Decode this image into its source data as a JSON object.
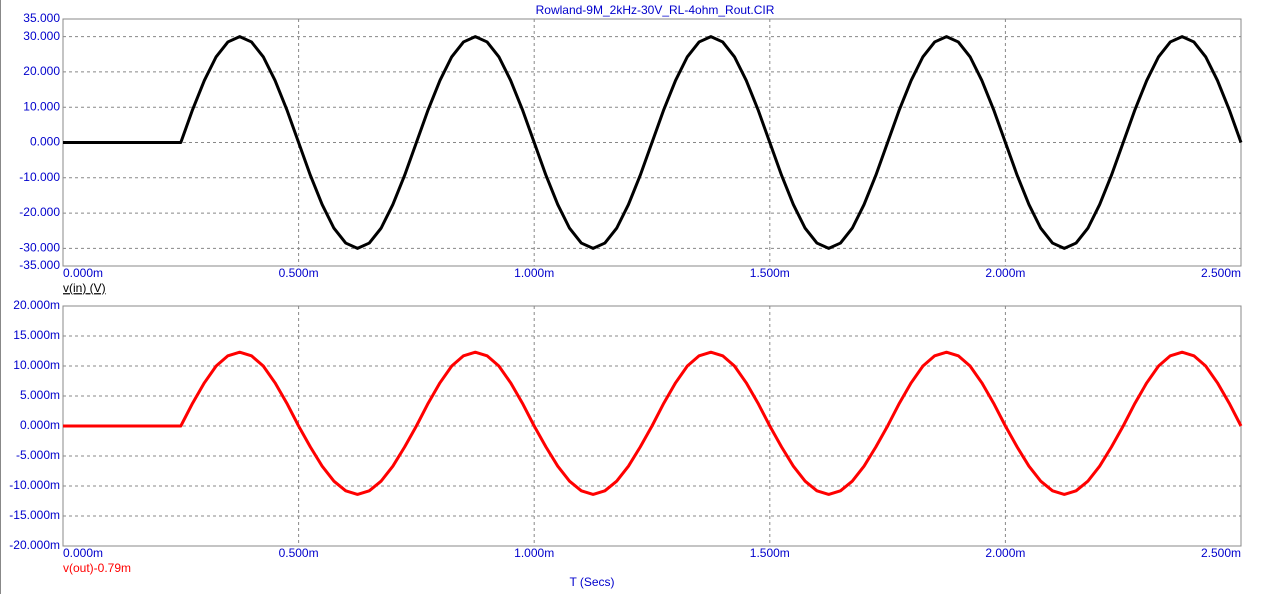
{
  "chart_data": [
    {
      "type": "line",
      "title": "Rowland-9M_2kHz-30V_RL-4ohm_Rout.CIR",
      "x": [
        0,
        0.00025,
        0.000275,
        0.0003,
        0.000325,
        0.00035,
        0.000375,
        0.0004,
        0.000425,
        0.00045,
        0.000475,
        0.0005,
        0.000525,
        0.00055,
        0.000575,
        0.0006,
        0.000625,
        0.00065,
        0.000675,
        0.0007,
        0.000725,
        0.00075,
        0.000775,
        0.0008,
        0.000825,
        0.00085,
        0.000875,
        0.0009,
        0.000925,
        0.00095,
        0.000975,
        0.001,
        0.001025,
        0.00105,
        0.001075,
        0.0011,
        0.001125,
        0.00115,
        0.001175,
        0.0012,
        0.001225,
        0.00125,
        0.001275,
        0.0013,
        0.001325,
        0.00135,
        0.001375,
        0.0014,
        0.001425,
        0.00145,
        0.001475,
        0.0015,
        0.001525,
        0.00155,
        0.001575,
        0.0016,
        0.001625,
        0.00165,
        0.001675,
        0.0017,
        0.001725,
        0.00175,
        0.001775,
        0.0018,
        0.001825,
        0.00185,
        0.001875,
        0.0019,
        0.001925,
        0.00195,
        0.001975,
        0.002,
        0.002025,
        0.00205,
        0.002075,
        0.0021,
        0.002125,
        0.00215,
        0.002175,
        0.0022,
        0.002225,
        0.00225,
        0.002275,
        0.0023,
        0.002325,
        0.00235,
        0.002375,
        0.0024,
        0.002425,
        0.00245,
        0.002475,
        0.0025
      ],
      "series": [
        {
          "name": "v(in) (V)",
          "color": "#000000",
          "values": [
            0,
            0,
            9.3,
            17.6,
            24.3,
            28.5,
            30,
            28.5,
            24.3,
            17.6,
            9.3,
            0,
            -9.3,
            -17.6,
            -24.3,
            -28.5,
            -30,
            -28.5,
            -24.3,
            -17.6,
            -9.3,
            0,
            9.3,
            17.6,
            24.3,
            28.5,
            30,
            28.5,
            24.3,
            17.6,
            9.3,
            0,
            -9.3,
            -17.6,
            -24.3,
            -28.5,
            -30,
            -28.5,
            -24.3,
            -17.6,
            -9.3,
            0,
            9.3,
            17.6,
            24.3,
            28.5,
            30,
            28.5,
            24.3,
            17.6,
            9.3,
            0,
            -9.3,
            -17.6,
            -24.3,
            -28.5,
            -30,
            -28.5,
            -24.3,
            -17.6,
            -9.3,
            0,
            9.3,
            17.6,
            24.3,
            28.5,
            30,
            28.5,
            24.3,
            17.6,
            9.3,
            0,
            -9.3,
            -17.6,
            -24.3,
            -28.5,
            -30,
            -28.5,
            -24.3,
            -17.6,
            -9.3,
            0,
            9.3,
            17.6,
            24.3,
            28.5,
            30,
            28.5,
            24.3,
            17.6,
            9.3,
            0
          ]
        }
      ],
      "xlim": [
        0,
        0.0025
      ],
      "xticks": [
        {
          "value": 0,
          "label": "0.000m"
        },
        {
          "value": 0.0005,
          "label": "0.500m"
        },
        {
          "value": 0.001,
          "label": "1.000m"
        },
        {
          "value": 0.0015,
          "label": "1.500m"
        },
        {
          "value": 0.002,
          "label": "2.000m"
        },
        {
          "value": 0.0025,
          "label": "2.500m"
        }
      ],
      "ylim": [
        -35,
        35
      ],
      "yticks": [
        {
          "value": 35,
          "label": "35.000"
        },
        {
          "value": 30,
          "label": "30.000"
        },
        {
          "value": 20,
          "label": "20.000"
        },
        {
          "value": 10,
          "label": "10.000"
        },
        {
          "value": 0,
          "label": "0.000"
        },
        {
          "value": -10,
          "label": "-10.000"
        },
        {
          "value": -20,
          "label": "-20.000"
        },
        {
          "value": -30,
          "label": "-30.000"
        },
        {
          "value": -35,
          "label": "-35.000"
        }
      ],
      "grid": true
    },
    {
      "type": "line",
      "xlabel": "T (Secs)",
      "x": [
        0,
        0.00025,
        0.000275,
        0.0003,
        0.000325,
        0.00035,
        0.000375,
        0.0004,
        0.000425,
        0.00045,
        0.000475,
        0.0005,
        0.000525,
        0.00055,
        0.000575,
        0.0006,
        0.000625,
        0.00065,
        0.000675,
        0.0007,
        0.000725,
        0.00075,
        0.000775,
        0.0008,
        0.000825,
        0.00085,
        0.000875,
        0.0009,
        0.000925,
        0.00095,
        0.000975,
        0.001,
        0.001025,
        0.00105,
        0.001075,
        0.0011,
        0.001125,
        0.00115,
        0.001175,
        0.0012,
        0.001225,
        0.00125,
        0.001275,
        0.0013,
        0.001325,
        0.00135,
        0.001375,
        0.0014,
        0.001425,
        0.00145,
        0.001475,
        0.0015,
        0.001525,
        0.00155,
        0.001575,
        0.0016,
        0.001625,
        0.00165,
        0.001675,
        0.0017,
        0.001725,
        0.00175,
        0.001775,
        0.0018,
        0.001825,
        0.00185,
        0.001875,
        0.0019,
        0.001925,
        0.00195,
        0.001975,
        0.002,
        0.002025,
        0.00205,
        0.002075,
        0.0021,
        0.002125,
        0.00215,
        0.002175,
        0.0022,
        0.002225,
        0.00225,
        0.002275,
        0.0023,
        0.002325,
        0.00235,
        0.002375,
        0.0024,
        0.002425,
        0.00245,
        0.002475,
        0.0025
      ],
      "series": [
        {
          "name": "v(out)-0.79m",
          "color": "#ff0000",
          "values": [
            0,
            0,
            0.0038,
            0.0072,
            0.01,
            0.0117,
            0.0123,
            0.0117,
            0.01,
            0.0072,
            0.0038,
            0,
            -0.0035,
            -0.0067,
            -0.0092,
            -0.0108,
            -0.0114,
            -0.0108,
            -0.0092,
            -0.0067,
            -0.0035,
            0,
            0.0038,
            0.0072,
            0.01,
            0.0117,
            0.0123,
            0.0117,
            0.01,
            0.0072,
            0.0038,
            0,
            -0.0035,
            -0.0067,
            -0.0092,
            -0.0108,
            -0.0114,
            -0.0108,
            -0.0092,
            -0.0067,
            -0.0035,
            0,
            0.0038,
            0.0072,
            0.01,
            0.0117,
            0.0123,
            0.0117,
            0.01,
            0.0072,
            0.0038,
            0,
            -0.0035,
            -0.0067,
            -0.0092,
            -0.0108,
            -0.0114,
            -0.0108,
            -0.0092,
            -0.0067,
            -0.0035,
            0,
            0.0038,
            0.0072,
            0.01,
            0.0117,
            0.0123,
            0.0117,
            0.01,
            0.0072,
            0.0038,
            0,
            -0.0035,
            -0.0067,
            -0.0092,
            -0.0108,
            -0.0114,
            -0.0108,
            -0.0092,
            -0.0067,
            -0.0035,
            0,
            0.0038,
            0.0072,
            0.01,
            0.0117,
            0.0123,
            0.0117,
            0.01,
            0.0072,
            0.0038,
            0
          ]
        }
      ],
      "xlim": [
        0,
        0.0025
      ],
      "xticks": [
        {
          "value": 0,
          "label": "0.000m"
        },
        {
          "value": 0.0005,
          "label": "0.500m"
        },
        {
          "value": 0.001,
          "label": "1.000m"
        },
        {
          "value": 0.0015,
          "label": "1.500m"
        },
        {
          "value": 0.002,
          "label": "2.000m"
        },
        {
          "value": 0.0025,
          "label": "2.500m"
        }
      ],
      "ylim": [
        -0.02,
        0.02
      ],
      "yticks": [
        {
          "value": 0.02,
          "label": "20.000m"
        },
        {
          "value": 0.015,
          "label": "15.000m"
        },
        {
          "value": 0.01,
          "label": "10.000m"
        },
        {
          "value": 0.005,
          "label": "5.000m"
        },
        {
          "value": 0,
          "label": "0.000m"
        },
        {
          "value": -0.005,
          "label": "-5.000m"
        },
        {
          "value": -0.01,
          "label": "-10.000m"
        },
        {
          "value": -0.015,
          "label": "-15.000m"
        },
        {
          "value": -0.02,
          "label": "-20.000m"
        }
      ],
      "grid": true
    }
  ]
}
